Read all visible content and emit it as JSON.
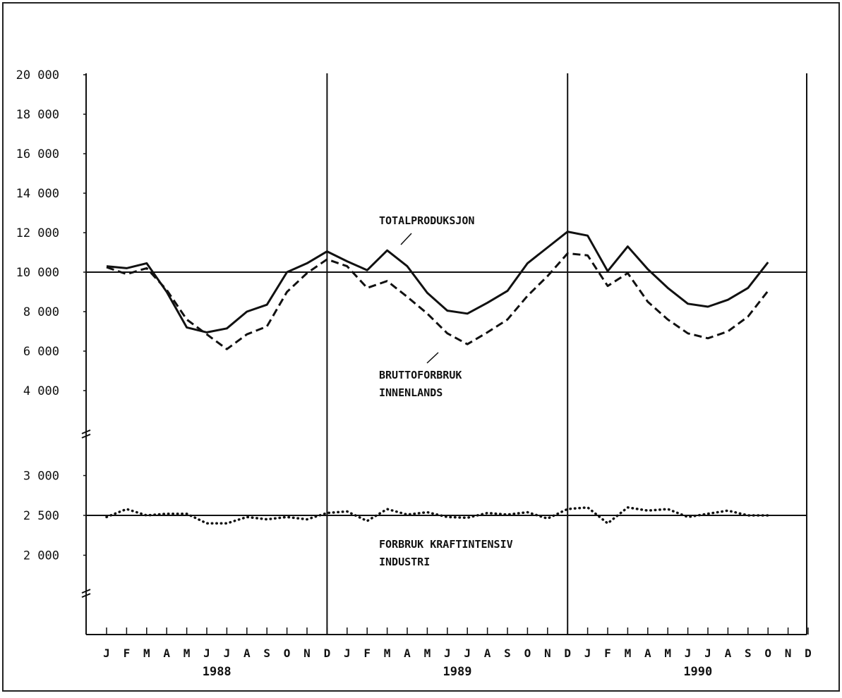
{
  "chart_data": {
    "type": "line",
    "title": "",
    "xlabel": "",
    "ylabel": "",
    "grid": false,
    "legend": "none",
    "x_tick_labels": [
      "J",
      "F",
      "M",
      "A",
      "M",
      "J",
      "J",
      "A",
      "S",
      "O",
      "N",
      "D",
      "J",
      "F",
      "M",
      "A",
      "M",
      "J",
      "J",
      "A",
      "S",
      "O",
      "N",
      "D",
      "J",
      "F",
      "M",
      "A",
      "M",
      "J",
      "J",
      "A",
      "S",
      "O",
      "N",
      "D"
    ],
    "year_labels": [
      "1988",
      "1989",
      "1990"
    ],
    "upper_panel": {
      "ylim": [
        0,
        20000
      ],
      "yticks": [
        4000,
        6000,
        8000,
        10000,
        12000,
        14000,
        16000,
        18000,
        20000
      ],
      "ytick_labels": [
        "4 000",
        "6 000",
        "8 000",
        "10 000",
        "12 000",
        "14 000",
        "16 000",
        "18 000",
        "20 000"
      ],
      "reference_line": 10000
    },
    "lower_panel": {
      "ylim": [
        1500,
        3000
      ],
      "yticks": [
        2000,
        2500,
        3000
      ],
      "ytick_labels": [
        "2 000",
        "2 500",
        "3 000"
      ],
      "reference_line": 2500
    },
    "series": [
      {
        "name": "TOTALPRODUKSJON",
        "style": "solid",
        "panel": "upper",
        "values": [
          10300,
          10200,
          10450,
          9000,
          7200,
          6950,
          7150,
          8000,
          8350,
          10000,
          10450,
          11050,
          10550,
          10100,
          11100,
          10300,
          8950,
          8050,
          7900,
          8450,
          9050,
          10450,
          11250,
          12050,
          11850,
          10050,
          11300,
          10150,
          9200,
          8400,
          8250,
          8600,
          9200,
          10500
        ]
      },
      {
        "name": "BRUTTOFORBRUK INNENLANDS",
        "style": "dashed",
        "panel": "upper",
        "values": [
          10250,
          9900,
          10200,
          9100,
          7600,
          6850,
          6100,
          6850,
          7250,
          9000,
          9950,
          10650,
          10300,
          9200,
          9550,
          8750,
          7900,
          6900,
          6350,
          6950,
          7600,
          8800,
          9800,
          10950,
          10850,
          9300,
          9950,
          8500,
          7600,
          6900,
          6650,
          7000,
          7750,
          9050
        ]
      },
      {
        "name": "FORBRUK KRAFTINTENSIV INDUSTRI",
        "style": "dotted",
        "panel": "lower",
        "values": [
          2480,
          2580,
          2500,
          2520,
          2520,
          2400,
          2400,
          2480,
          2450,
          2480,
          2450,
          2530,
          2550,
          2430,
          2580,
          2510,
          2540,
          2480,
          2470,
          2530,
          2510,
          2540,
          2460,
          2580,
          2600,
          2400,
          2600,
          2560,
          2580,
          2480,
          2520,
          2560,
          2500,
          2500
        ]
      }
    ],
    "annotations": [
      {
        "text": "TOTALPRODUKSJON"
      },
      {
        "text": "BRUTTOFORBRUK",
        "text2": "INNENLANDS"
      },
      {
        "text": "FORBRUK KRAFTINTENSIV",
        "text2": "INDUSTRI"
      }
    ]
  }
}
